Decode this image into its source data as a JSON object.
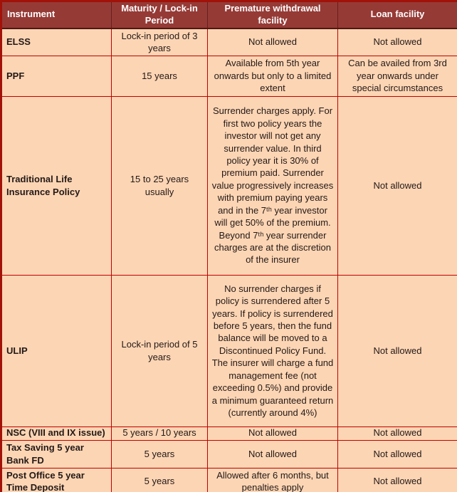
{
  "colors": {
    "header_bg": "#963a36",
    "header_text": "#ffffff",
    "body_bg": "#fcd5b4",
    "grid_line": "#c00000",
    "outer_border": "#a21208",
    "body_text": "#231917"
  },
  "table": {
    "headers": [
      "Instrument",
      "Maturity / Lock-in Period",
      "Premature withdrawal facility",
      "Loan facility"
    ],
    "rows": [
      {
        "instrument": "ELSS",
        "maturity": "Lock-in period of 3 years",
        "premature": "Not allowed",
        "loan": "Not allowed"
      },
      {
        "instrument": "PPF",
        "maturity": "15 years",
        "premature": "Available from 5th year onwards but only to a limited extent",
        "loan": "Can be availed from 3rd year onwards under special circumstances"
      },
      {
        "instrument": "Traditional Life Insurance Policy",
        "maturity": "15 to 25 years usually",
        "premature": "Surrender charges apply. For first two policy years the investor will not get any surrender value. In third policy year it is 30% of premium paid. Surrender value progressively increases with premium paying years and in the 7ᵗʰ year investor will get 50% of the premium. Beyond 7ᵗʰ year surrender charges are at the discretion of the insurer",
        "loan": "Not allowed"
      },
      {
        "instrument": "ULIP",
        "maturity": "Lock-in period of 5 years",
        "premature": "No surrender charges if policy is surrendered after 5 years. If policy is surrendered before 5 years, then the fund balance will be moved to a Discontinued Policy Fund. The insurer will charge a fund management fee (not exceeding 0.5%) and provide a minimum guaranteed return (currently around 4%)",
        "loan": "Not allowed"
      },
      {
        "instrument": "NSC (VIII and IX issue)",
        "maturity": "5 years / 10 years",
        "premature": "Not allowed",
        "loan": "Not allowed"
      },
      {
        "instrument": "Tax Saving 5 year Bank FD",
        "maturity": "5 years",
        "premature": "Not allowed",
        "loan": "Not allowed"
      },
      {
        "instrument": "Post Office 5 year Time Deposit",
        "maturity": "5 years",
        "premature": "Allowed after 6 months, but penalties apply",
        "loan": "Not allowed"
      }
    ]
  }
}
